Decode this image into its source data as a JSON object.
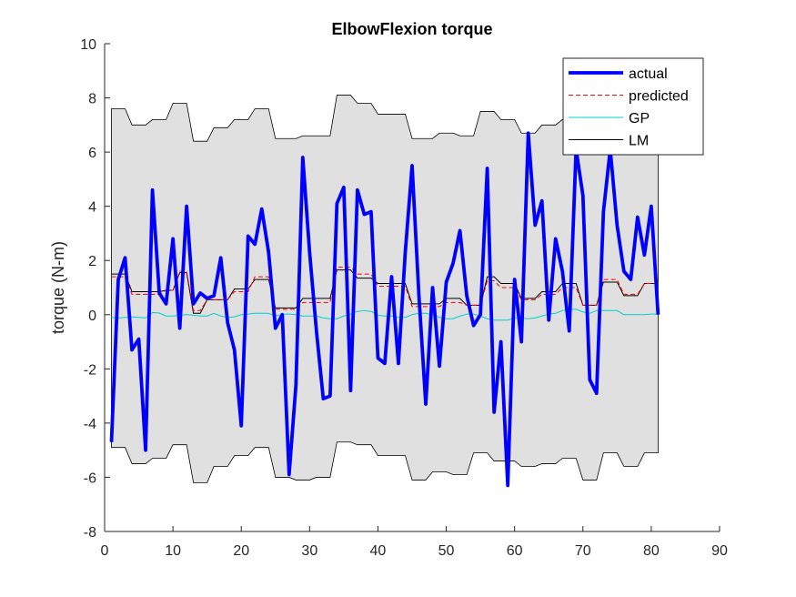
{
  "chart_data": {
    "type": "line",
    "title": "ElbowFlexion torque",
    "xlabel": "",
    "ylabel": "torque (N-m)",
    "xlim": [
      0,
      90
    ],
    "ylim": [
      -8,
      10
    ],
    "xticks": [
      0,
      10,
      20,
      30,
      40,
      50,
      60,
      70,
      80,
      90
    ],
    "yticks": [
      -8,
      -6,
      -4,
      -2,
      0,
      2,
      4,
      6,
      8,
      10
    ],
    "grid": false,
    "legend_position": "top-right",
    "x": [
      1,
      2,
      3,
      4,
      5,
      6,
      7,
      8,
      9,
      10,
      11,
      12,
      13,
      14,
      15,
      16,
      17,
      18,
      19,
      20,
      21,
      22,
      23,
      24,
      25,
      26,
      27,
      28,
      29,
      30,
      31,
      32,
      33,
      34,
      35,
      36,
      37,
      38,
      39,
      40,
      41,
      42,
      43,
      44,
      45,
      46,
      47,
      48,
      49,
      50,
      51,
      52,
      53,
      54,
      55,
      56,
      57,
      58,
      59,
      60,
      61,
      62,
      63,
      64,
      65,
      66,
      67,
      68,
      69,
      70,
      71,
      72,
      73,
      74,
      75,
      76,
      77,
      78,
      79,
      80,
      81
    ],
    "series": [
      {
        "name": "actual",
        "color": "#0000ff",
        "style": "solid-thick",
        "values": [
          -4.7,
          1.3,
          2.1,
          -1.3,
          -0.9,
          -5.0,
          4.6,
          0.8,
          0.4,
          2.8,
          -0.5,
          4.0,
          0.4,
          0.8,
          0.6,
          0.7,
          2.1,
          -0.3,
          -1.3,
          -4.1,
          2.9,
          2.6,
          3.9,
          2.3,
          -0.5,
          0.0,
          -5.9,
          -2.6,
          5.8,
          2.3,
          -0.6,
          -3.1,
          -3.0,
          4.1,
          4.7,
          -2.8,
          4.6,
          3.7,
          3.8,
          -1.6,
          -1.8,
          1.4,
          -1.8,
          2.3,
          5.5,
          0.7,
          -3.3,
          1.0,
          -1.9,
          1.2,
          1.9,
          3.1,
          0.7,
          -0.4,
          0.0,
          5.4,
          -3.6,
          -1.0,
          -6.3,
          1.3,
          -1.0,
          6.7,
          3.3,
          4.2,
          -0.2,
          2.8,
          1.6,
          -0.6,
          6.1,
          4.4,
          -2.4,
          -2.9,
          3.8,
          6.1,
          3.3,
          1.6,
          1.3,
          3.6,
          2.2,
          4.0,
          0.0
        ]
      },
      {
        "name": "predicted",
        "color": "#ff0000",
        "style": "dashed",
        "values": [
          1.4,
          1.4,
          1.4,
          0.75,
          0.75,
          0.75,
          0.75,
          0.75,
          0.9,
          0.9,
          1.6,
          1.6,
          0.15,
          0.15,
          0.55,
          0.55,
          0.55,
          0.55,
          0.85,
          0.85,
          0.85,
          1.4,
          1.4,
          1.4,
          0.2,
          0.2,
          0.2,
          0.2,
          0.45,
          0.45,
          0.45,
          0.45,
          0.45,
          1.75,
          1.75,
          1.75,
          1.5,
          1.5,
          1.5,
          1.05,
          1.05,
          1.05,
          1.05,
          1.05,
          0.3,
          0.3,
          0.3,
          0.3,
          0.3,
          0.45,
          0.45,
          0.45,
          0.35,
          0.35,
          0.35,
          1.25,
          1.25,
          1.0,
          1.0,
          1.0,
          0.55,
          0.55,
          0.55,
          0.75,
          0.75,
          0.75,
          1.0,
          1.0,
          1.0,
          0.35,
          0.35,
          0.35,
          1.3,
          1.3,
          1.3,
          0.75,
          0.75,
          0.75,
          1.15,
          1.15,
          1.15
        ]
      },
      {
        "name": "GP",
        "color": "#00d0d0",
        "style": "solid-thin",
        "values": [
          -0.1,
          -0.12,
          -0.1,
          -0.08,
          -0.1,
          -0.12,
          0.08,
          0.06,
          -0.05,
          -0.05,
          -0.02,
          0.0,
          -0.02,
          -0.05,
          -0.05,
          0.05,
          -0.05,
          -0.1,
          -0.08,
          0.0,
          0.02,
          0.05,
          0.05,
          0.05,
          -0.05,
          0.02,
          0.02,
          0.0,
          -0.05,
          -0.05,
          -0.05,
          -0.12,
          -0.15,
          -0.15,
          -0.05,
          0.02,
          0.12,
          0.15,
          0.12,
          -0.02,
          -0.05,
          -0.05,
          -0.1,
          -0.1,
          0.0,
          0.05,
          0.05,
          0.0,
          -0.1,
          -0.15,
          -0.15,
          -0.05,
          0.02,
          0.02,
          -0.05,
          -0.15,
          -0.2,
          -0.2,
          -0.2,
          -0.12,
          -0.12,
          -0.15,
          -0.12,
          -0.05,
          0.02,
          0.05,
          0.15,
          0.2,
          0.2,
          0.1,
          0.05,
          0.15,
          0.15,
          0.15,
          0.15,
          0.0,
          0.0,
          0.0,
          0.0,
          0.02,
          0.02
        ]
      },
      {
        "name": "LM",
        "color": "#000000",
        "style": "solid-thin",
        "values": [
          1.5,
          1.5,
          1.5,
          0.85,
          0.85,
          0.85,
          0.85,
          0.85,
          0.9,
          0.9,
          1.55,
          1.55,
          0.05,
          0.05,
          0.55,
          0.55,
          0.55,
          0.55,
          0.95,
          0.95,
          0.95,
          1.3,
          1.3,
          1.3,
          0.25,
          0.25,
          0.25,
          0.25,
          0.6,
          0.6,
          0.6,
          0.6,
          0.6,
          1.65,
          1.65,
          1.65,
          1.35,
          1.35,
          1.35,
          1.15,
          1.15,
          1.15,
          1.15,
          1.15,
          0.4,
          0.4,
          0.4,
          0.4,
          0.4,
          0.6,
          0.6,
          0.6,
          0.35,
          0.35,
          0.35,
          1.4,
          1.4,
          1.15,
          1.15,
          1.15,
          0.6,
          0.6,
          0.6,
          0.85,
          0.85,
          0.85,
          1.15,
          1.15,
          1.15,
          0.35,
          0.35,
          0.35,
          1.2,
          1.2,
          1.2,
          0.7,
          0.7,
          0.7,
          1.15,
          1.15,
          1.15
        ]
      }
    ],
    "band": {
      "color": "#e0e0e0",
      "upper": [
        7.6,
        7.6,
        7.6,
        7.0,
        7.0,
        7.0,
        7.2,
        7.2,
        7.2,
        7.8,
        7.8,
        7.8,
        6.4,
        6.4,
        6.4,
        6.9,
        6.9,
        6.9,
        7.2,
        7.2,
        7.2,
        7.6,
        7.6,
        7.6,
        6.5,
        6.5,
        6.5,
        6.5,
        6.6,
        6.6,
        6.6,
        6.6,
        6.6,
        8.1,
        8.1,
        8.1,
        7.8,
        7.8,
        7.8,
        7.4,
        7.4,
        7.4,
        7.4,
        7.4,
        6.5,
        6.5,
        6.5,
        6.5,
        6.7,
        6.7,
        6.7,
        6.6,
        6.6,
        6.6,
        7.5,
        7.5,
        7.5,
        7.2,
        7.2,
        7.2,
        6.7,
        6.7,
        6.7,
        7.0,
        7.0,
        7.0,
        7.2,
        7.2,
        7.2,
        6.5,
        6.5,
        6.5,
        7.4,
        7.4,
        7.4,
        6.9,
        6.9,
        6.9,
        7.3,
        7.3,
        7.3
      ],
      "lower": [
        -4.9,
        -4.9,
        -4.9,
        -5.5,
        -5.5,
        -5.5,
        -5.3,
        -5.3,
        -5.3,
        -4.8,
        -4.8,
        -4.8,
        -6.2,
        -6.2,
        -6.2,
        -5.6,
        -5.6,
        -5.6,
        -5.2,
        -5.2,
        -5.2,
        -4.9,
        -4.9,
        -4.9,
        -6.0,
        -6.0,
        -6.0,
        -6.1,
        -6.1,
        -6.1,
        -6.0,
        -6.0,
        -6.0,
        -4.7,
        -4.7,
        -4.7,
        -4.8,
        -4.8,
        -4.8,
        -5.2,
        -5.2,
        -5.2,
        -5.2,
        -5.2,
        -6.1,
        -6.1,
        -6.1,
        -5.8,
        -5.8,
        -5.8,
        -5.9,
        -5.9,
        -5.9,
        -5.1,
        -5.1,
        -5.1,
        -5.4,
        -5.4,
        -5.4,
        -5.4,
        -5.6,
        -5.6,
        -5.6,
        -5.5,
        -5.5,
        -5.5,
        -5.3,
        -5.3,
        -5.3,
        -6.1,
        -6.1,
        -6.1,
        -5.1,
        -5.1,
        -5.1,
        -5.6,
        -5.6,
        -5.6,
        -5.1,
        -5.1,
        -5.1
      ]
    },
    "legend": [
      "actual",
      "predicted",
      "GP",
      "LM"
    ]
  }
}
